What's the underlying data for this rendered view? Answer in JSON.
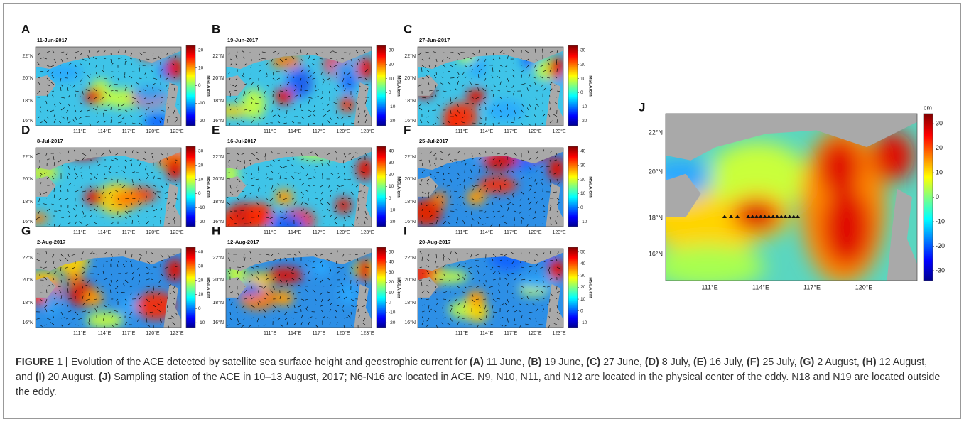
{
  "lat_labels": [
    "22°N",
    "20°N",
    "18°N",
    "16°N"
  ],
  "lon_labels": [
    "111°E",
    "114°E",
    "117°E",
    "120°E",
    "123°E"
  ],
  "colorbar_label": "MSLA/cm",
  "panels": [
    {
      "letter": "A",
      "date": "11-Jun-2017",
      "colorbar_ticks": [
        20,
        10,
        0,
        -10,
        -20
      ]
    },
    {
      "letter": "B",
      "date": "19-Jun-2017",
      "colorbar_ticks": [
        30,
        20,
        10,
        0,
        -10,
        -20
      ]
    },
    {
      "letter": "C",
      "date": "27-Jun-2017",
      "colorbar_ticks": [
        30,
        20,
        10,
        0,
        -10,
        -20
      ]
    },
    {
      "letter": "D",
      "date": "8-Jul-2017",
      "colorbar_ticks": [
        30,
        20,
        10,
        0,
        -10,
        -20
      ]
    },
    {
      "letter": "E",
      "date": "16-Jul-2017",
      "colorbar_ticks": [
        40,
        30,
        20,
        10,
        0,
        -10,
        -20
      ]
    },
    {
      "letter": "F",
      "date": "25-Jul-2017",
      "colorbar_ticks": [
        40,
        30,
        20,
        10,
        0,
        -10
      ]
    },
    {
      "letter": "G",
      "date": "2-Aug-2017",
      "colorbar_ticks": [
        40,
        30,
        20,
        10,
        0,
        -10
      ]
    },
    {
      "letter": "H",
      "date": "12-Aug-2017",
      "colorbar_ticks": [
        50,
        40,
        30,
        20,
        10,
        0,
        -10,
        -20
      ]
    },
    {
      "letter": "I",
      "date": "20-Aug-2017",
      "colorbar_ticks": [
        50,
        40,
        30,
        20,
        10,
        0,
        -10
      ]
    }
  ],
  "panel_j": {
    "letter": "J",
    "colorbar_label": "cm",
    "colorbar_ticks": [
      30,
      20,
      10,
      0,
      -10,
      -20,
      -30
    ],
    "lat_labels": [
      "22°N",
      "20°N",
      "18°N",
      "16°N"
    ],
    "lon_labels": [
      "111°E",
      "114°E",
      "117°E",
      "120°E"
    ]
  },
  "caption": {
    "segments": [
      "FIGURE 1 |",
      " Evolution of the ACE detected by satellite sea surface height and geostrophic current for ",
      "(A)",
      " 11 June, ",
      "(B)",
      " 19 June, ",
      "(C)",
      " 27 June, ",
      "(D)",
      " 8 July, ",
      "(E)",
      " 16 July, ",
      "(F)",
      " 25 July, ",
      "(G)",
      " 2 August, ",
      "(H)",
      " 12 August, and ",
      "(I)",
      " 20 August. ",
      "(J)",
      " Sampling station of the ACE in 10–13 August, 2017; N6-N16 are located in ACE. N9, N10, N11, and N12 are located in the physical center of the eddy. N18 and N19 are located outside the eddy."
    ]
  }
}
